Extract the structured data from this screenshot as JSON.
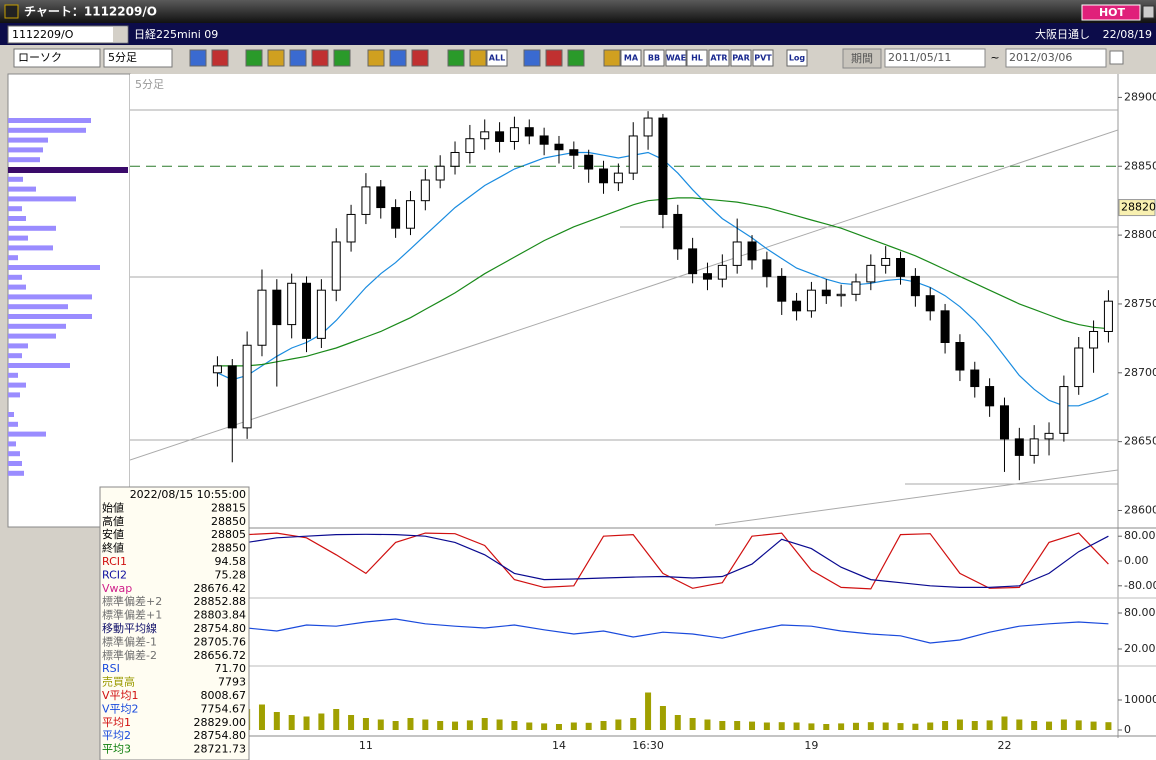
{
  "window": {
    "title": "チャート：1112209/O",
    "hot": "HOT"
  },
  "header": {
    "symbol": "1112209/O",
    "name": "日経225mini 09",
    "session": "大阪日通し",
    "date": "22/08/19"
  },
  "toolbar": {
    "chart_type": "ローソク",
    "interval": "5分足",
    "period_button": "期間",
    "from": "2011/05/11",
    "tilde": "~",
    "to": "2012/03/06",
    "buttons": [
      "ALL",
      "MA",
      "BB",
      "WAE",
      "HL",
      "ATR",
      "PAR",
      "PVT",
      "Log"
    ]
  },
  "info": {
    "datetime": "2022/08/15 10:55:00",
    "rows": [
      {
        "label": "始値",
        "value": "28815",
        "color": "#000000"
      },
      {
        "label": "高値",
        "value": "28850",
        "color": "#000000"
      },
      {
        "label": "安値",
        "value": "28805",
        "color": "#000000"
      },
      {
        "label": "終値",
        "value": "28850",
        "color": "#000000"
      },
      {
        "label": "RCI1",
        "value": "94.58",
        "color": "#d01010"
      },
      {
        "label": "RCI2",
        "value": "75.28",
        "color": "#1010a0"
      },
      {
        "label": "Vwap",
        "value": "28676.42",
        "color": "#d0208a"
      },
      {
        "label": "標準偏差+2",
        "value": "28852.88",
        "color": "#707070"
      },
      {
        "label": "標準偏差+1",
        "value": "28803.84",
        "color": "#707070"
      },
      {
        "label": "移動平均線",
        "value": "28754.80",
        "color": "#10106a"
      },
      {
        "label": "標準偏差-1",
        "value": "28705.76",
        "color": "#707070"
      },
      {
        "label": "標準偏差-2",
        "value": "28656.72",
        "color": "#707070"
      },
      {
        "label": "RSI",
        "value": "71.70",
        "color": "#1a4adc"
      },
      {
        "label": "売買高",
        "value": "7793",
        "color": "#9a9a00"
      },
      {
        "label": "V平均1",
        "value": "8008.67",
        "color": "#d01010"
      },
      {
        "label": "V平均2",
        "value": "7754.67",
        "color": "#1a4adc"
      },
      {
        "label": "平均1",
        "value": "28829.00",
        "color": "#d01010"
      },
      {
        "label": "平均2",
        "value": "28754.80",
        "color": "#1a4adc"
      },
      {
        "label": "平均3",
        "value": "28721.73",
        "color": "#108010"
      }
    ]
  },
  "chart_data": [
    {
      "type": "candlestick",
      "label": "5分足",
      "categories": [
        null,
        null,
        null,
        null,
        null,
        null,
        null,
        null,
        null,
        null,
        "11",
        null,
        null,
        null,
        null,
        null,
        null,
        null,
        null,
        null,
        null,
        null,
        null,
        "14",
        null,
        null,
        null,
        null,
        null,
        "16:30",
        null,
        null,
        null,
        null,
        null,
        null,
        null,
        null,
        null,
        null,
        "19",
        null,
        null,
        null,
        null,
        null,
        null,
        null,
        null,
        null,
        null,
        null,
        null,
        "22",
        null,
        null,
        null,
        null,
        null,
        null,
        null
      ],
      "candles": [
        [
          28700,
          28712,
          28690,
          28705
        ],
        [
          28705,
          28710,
          28635,
          28660
        ],
        [
          28660,
          28730,
          28652,
          28720
        ],
        [
          28720,
          28775,
          28712,
          28760
        ],
        [
          28760,
          28768,
          28690,
          28735
        ],
        [
          28735,
          28772,
          28725,
          28765
        ],
        [
          28765,
          28770,
          28715,
          28725
        ],
        [
          28725,
          28768,
          28718,
          28760
        ],
        [
          28760,
          28805,
          28752,
          28795
        ],
        [
          28795,
          28822,
          28788,
          28815
        ],
        [
          28815,
          28845,
          28808,
          28835
        ],
        [
          28835,
          28840,
          28812,
          28820
        ],
        [
          28820,
          28826,
          28798,
          28805
        ],
        [
          28805,
          28832,
          28800,
          28825
        ],
        [
          28825,
          28848,
          28818,
          28840
        ],
        [
          28840,
          28858,
          28834,
          28850
        ],
        [
          28850,
          28868,
          28844,
          28860
        ],
        [
          28860,
          28880,
          28852,
          28870
        ],
        [
          28870,
          28884,
          28862,
          28875
        ],
        [
          28875,
          28882,
          28860,
          28868
        ],
        [
          28868,
          28886,
          28862,
          28878
        ],
        [
          28878,
          28884,
          28866,
          28872
        ],
        [
          28872,
          28878,
          28858,
          28866
        ],
        [
          28866,
          28872,
          28852,
          28862
        ],
        [
          28862,
          28868,
          28848,
          28858
        ],
        [
          28858,
          28862,
          28838,
          28848
        ],
        [
          28848,
          28854,
          28830,
          28838
        ],
        [
          28838,
          28852,
          28832,
          28845
        ],
        [
          28845,
          28882,
          28840,
          28872
        ],
        [
          28872,
          28890,
          28862,
          28885
        ],
        [
          28885,
          28888,
          28805,
          28815
        ],
        [
          28815,
          28822,
          28782,
          28790
        ],
        [
          28790,
          28798,
          28765,
          28772
        ],
        [
          28772,
          28780,
          28760,
          28768
        ],
        [
          28768,
          28786,
          28762,
          28778
        ],
        [
          28778,
          28812,
          28772,
          28795
        ],
        [
          28795,
          28800,
          28775,
          28782
        ],
        [
          28782,
          28788,
          28762,
          28770
        ],
        [
          28770,
          28776,
          28742,
          28752
        ],
        [
          28752,
          28758,
          28738,
          28745
        ],
        [
          28745,
          28766,
          28740,
          28760
        ],
        [
          28760,
          28768,
          28750,
          28756
        ],
        [
          28756,
          28764,
          28748,
          28757
        ],
        [
          28757,
          28772,
          28752,
          28766
        ],
        [
          28766,
          28786,
          28760,
          28778
        ],
        [
          28778,
          28792,
          28772,
          28783
        ],
        [
          28783,
          28788,
          28764,
          28770
        ],
        [
          28770,
          28776,
          28748,
          28756
        ],
        [
          28756,
          28762,
          28738,
          28745
        ],
        [
          28745,
          28750,
          28714,
          28722
        ],
        [
          28722,
          28728,
          28694,
          28702
        ],
        [
          28702,
          28708,
          28682,
          28690
        ],
        [
          28690,
          28696,
          28668,
          28676
        ],
        [
          28676,
          28682,
          28628,
          28652
        ],
        [
          28652,
          28660,
          28622,
          28640
        ],
        [
          28640,
          28662,
          28634,
          28652
        ],
        [
          28652,
          28664,
          28640,
          28656
        ],
        [
          28656,
          28698,
          28650,
          28690
        ],
        [
          28690,
          28726,
          28684,
          28718
        ],
        [
          28718,
          28738,
          28700,
          28730
        ],
        [
          28730,
          28760,
          28722,
          28752
        ]
      ],
      "series": [
        {
          "color": "#1a8ce0",
          "values": [
            28700,
            28695,
            28698,
            28705,
            28712,
            28718,
            28722,
            28728,
            28738,
            28750,
            28762,
            28772,
            28780,
            28790,
            28800,
            28810,
            28820,
            28828,
            28836,
            28842,
            28848,
            28852,
            28856,
            28858,
            28860,
            28860,
            28858,
            28856,
            28858,
            28860,
            28855,
            28845,
            28833,
            28822,
            28812,
            28805,
            28798,
            28790,
            28783,
            28776,
            28772,
            28768,
            28765,
            28764,
            28765,
            28767,
            28768,
            28766,
            28762,
            28756,
            28748,
            28738,
            28726,
            28712,
            28698,
            28688,
            28680,
            28676,
            28676,
            28680,
            28685
          ]
        },
        {
          "color": "#1a8a1a",
          "values": [
            28705,
            28705,
            28705,
            28706,
            28708,
            28710,
            28712,
            28715,
            28718,
            28722,
            28726,
            28730,
            28735,
            28740,
            28746,
            28752,
            28758,
            28765,
            28772,
            28778,
            28784,
            28790,
            28796,
            28801,
            28806,
            28810,
            28814,
            28818,
            28822,
            28825,
            28826,
            28827,
            28827,
            28826,
            28825,
            28824,
            28822,
            28820,
            28817,
            28814,
            28811,
            28808,
            28805,
            28801,
            28797,
            28793,
            28789,
            28785,
            28780,
            28775,
            28770,
            28765,
            28760,
            28755,
            28750,
            28746,
            28742,
            28738,
            28735,
            28733,
            28732
          ]
        }
      ],
      "ylim": [
        28588,
        28917
      ],
      "yticks": [
        28600,
        28650,
        28700,
        28750,
        28800,
        28850,
        28900
      ],
      "current": 28820,
      "current_color": "#f8f0b0",
      "reference_line": 28850,
      "reference_color": "#2a7a2a",
      "profile": {
        "values": [
          83,
          78,
          40,
          35,
          32,
          120,
          15,
          28,
          68,
          14,
          18,
          48,
          20,
          45,
          10,
          92,
          14,
          18,
          84,
          60,
          84,
          58,
          48,
          20,
          14,
          62,
          10,
          18,
          12,
          0,
          6,
          10,
          38,
          8,
          12,
          14,
          16
        ],
        "xlim": [
          0,
          120
        ],
        "highlight": 5,
        "color": "#9a8cff",
        "highlight_color": "#3a0a6a"
      }
    },
    {
      "type": "line",
      "ylim": [
        -100,
        100
      ],
      "yticks": [
        {
          "value": 80,
          "label": "80.00"
        },
        {
          "value": 0,
          "label": "0.00"
        },
        {
          "value": -80,
          "label": "-80.00"
        }
      ],
      "series": [
        {
          "color": "#d01010",
          "values": [
            60,
            85,
            90,
            75,
            20,
            -40,
            60,
            90,
            88,
            50,
            -60,
            -85,
            -80,
            80,
            85,
            -40,
            -88,
            -70,
            80,
            90,
            -30,
            -85,
            -90,
            85,
            88,
            -40,
            -88,
            -85,
            60,
            90,
            -10
          ]
        },
        {
          "color": "#0a0a90",
          "values": [
            20,
            60,
            75,
            80,
            85,
            86,
            85,
            80,
            60,
            20,
            -40,
            -60,
            -58,
            -55,
            -52,
            -50,
            -55,
            -50,
            -10,
            70,
            40,
            -20,
            -60,
            -70,
            -80,
            -85,
            -85,
            -80,
            -40,
            30,
            80
          ]
        }
      ]
    },
    {
      "type": "line",
      "ylim": [
        0,
        100
      ],
      "yticks": [
        {
          "value": 80,
          "label": "80.00"
        },
        {
          "value": 20,
          "label": "20.00"
        }
      ],
      "series": [
        {
          "color": "#1a4adc",
          "values": [
            52,
            55,
            50,
            60,
            58,
            65,
            70,
            62,
            58,
            55,
            60,
            52,
            45,
            50,
            40,
            48,
            45,
            38,
            50,
            60,
            58,
            50,
            45,
            42,
            30,
            35,
            48,
            58,
            62,
            65,
            62
          ]
        }
      ]
    },
    {
      "type": "bar",
      "ylim": [
        0,
        20000
      ],
      "yticks": [
        10000,
        0
      ],
      "color": "#a0a000",
      "values": [
        12000,
        9000,
        7000,
        8500,
        6000,
        5000,
        4500,
        5500,
        7000,
        5000,
        4000,
        3500,
        3000,
        4000,
        3500,
        3000,
        2800,
        3200,
        4000,
        3500,
        3000,
        2500,
        2200,
        2000,
        2500,
        2400,
        3000,
        3500,
        4000,
        12500,
        8000,
        5000,
        4000,
        3500,
        3000,
        3000,
        2800,
        2500,
        2600,
        2500,
        2200,
        2000,
        2200,
        2400,
        2600,
        2500,
        2300,
        2100,
        2500,
        3000,
        3500,
        3000,
        3200,
        4500,
        3500,
        3000,
        2800,
        3500,
        3200,
        2800,
        2600
      ]
    }
  ]
}
